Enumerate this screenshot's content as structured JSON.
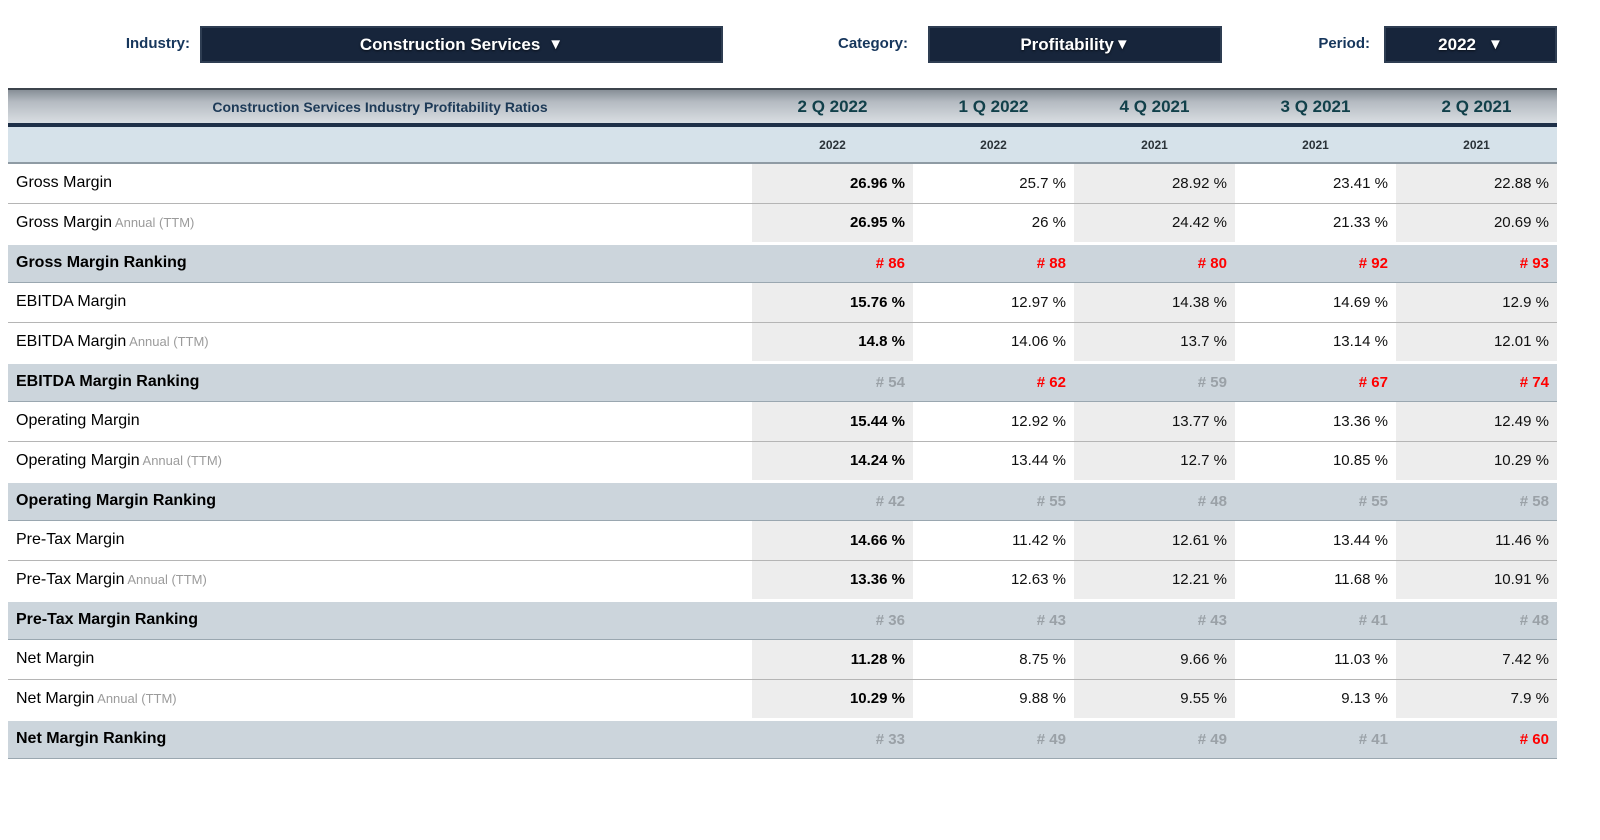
{
  "colors": {
    "dropdown_bg": "#17253b",
    "filter_label": "#16365c",
    "header_navy_band": "#1e3048",
    "subheader_bg": "#d6e2ea",
    "ranking_row_bg": "#ccd5dc",
    "shaded_column_bg": "#ededed",
    "ranking_red": "#ff0000",
    "ranking_gray": "#9aa1a7"
  },
  "filters": {
    "industry": {
      "label": "Industry:",
      "value": "Construction Services",
      "arrow": "▼"
    },
    "category": {
      "label": "Category:",
      "value": "Profitability",
      "arrow": "▼"
    },
    "period": {
      "label": "Period:",
      "value": "2022",
      "arrow": "▼"
    }
  },
  "table": {
    "title": "Construction Services Industry Profitability Ratios",
    "columns": [
      "2 Q 2022",
      "1 Q 2022",
      "4 Q 2021",
      "3 Q 2021",
      "2 Q 2021"
    ],
    "subcolumns": [
      "2022",
      "2022",
      "2021",
      "2021",
      "2021"
    ],
    "rows": [
      {
        "type": "data",
        "label": "Gross Margin",
        "sublabel": "",
        "values": [
          "26.96 %",
          "25.7 %",
          "28.92 %",
          "23.41 %",
          "22.88 %"
        ]
      },
      {
        "type": "data",
        "label": "Gross Margin",
        "sublabel": "Annual (TTM)",
        "values": [
          "26.95 %",
          "26 %",
          "24.42 %",
          "21.33 %",
          "20.69 %"
        ]
      },
      {
        "type": "ranking",
        "label": "Gross Margin Ranking",
        "values": [
          "# 86",
          "# 88",
          "# 80",
          "# 92",
          "# 93"
        ],
        "colors": [
          "red",
          "red",
          "red",
          "red",
          "red"
        ]
      },
      {
        "type": "data",
        "label": "EBITDA Margin",
        "sublabel": "",
        "values": [
          "15.76 %",
          "12.97 %",
          "14.38 %",
          "14.69 %",
          "12.9 %"
        ]
      },
      {
        "type": "data",
        "label": "EBITDA Margin",
        "sublabel": "Annual (TTM)",
        "values": [
          "14.8 %",
          "14.06 %",
          "13.7 %",
          "13.14 %",
          "12.01 %"
        ]
      },
      {
        "type": "ranking",
        "label": "EBITDA Margin Ranking",
        "values": [
          "# 54",
          "# 62",
          "# 59",
          "# 67",
          "# 74"
        ],
        "colors": [
          "gray",
          "red",
          "gray",
          "red",
          "red"
        ]
      },
      {
        "type": "data",
        "label": "Operating Margin",
        "sublabel": "",
        "values": [
          "15.44 %",
          "12.92 %",
          "13.77 %",
          "13.36 %",
          "12.49 %"
        ]
      },
      {
        "type": "data",
        "label": "Operating Margin",
        "sublabel": "Annual (TTM)",
        "values": [
          "14.24 %",
          "13.44 %",
          "12.7 %",
          "10.85 %",
          "10.29 %"
        ]
      },
      {
        "type": "ranking",
        "label": "Operating Margin Ranking",
        "values": [
          "# 42",
          "# 55",
          "# 48",
          "# 55",
          "# 58"
        ],
        "colors": [
          "gray",
          "gray",
          "gray",
          "gray",
          "gray"
        ]
      },
      {
        "type": "data",
        "label": "Pre-Tax Margin",
        "sublabel": "",
        "values": [
          "14.66 %",
          "11.42 %",
          "12.61 %",
          "13.44 %",
          "11.46 %"
        ]
      },
      {
        "type": "data",
        "label": "Pre-Tax Margin",
        "sublabel": "Annual (TTM)",
        "values": [
          "13.36 %",
          "12.63 %",
          "12.21 %",
          "11.68 %",
          "10.91 %"
        ]
      },
      {
        "type": "ranking",
        "label": "Pre-Tax Margin Ranking",
        "values": [
          "# 36",
          "# 43",
          "# 43",
          "# 41",
          "# 48"
        ],
        "colors": [
          "gray",
          "gray",
          "gray",
          "gray",
          "gray"
        ]
      },
      {
        "type": "data",
        "label": "Net Margin",
        "sublabel": "",
        "values": [
          "11.28 %",
          "8.75 %",
          "9.66 %",
          "11.03 %",
          "7.42 %"
        ]
      },
      {
        "type": "data",
        "label": "Net Margin",
        "sublabel": "Annual (TTM)",
        "values": [
          "10.29 %",
          "9.88 %",
          "9.55 %",
          "9.13 %",
          "7.9 %"
        ]
      },
      {
        "type": "ranking",
        "label": "Net Margin Ranking",
        "values": [
          "# 33",
          "# 49",
          "# 49",
          "# 41",
          "# 60"
        ],
        "colors": [
          "gray",
          "gray",
          "gray",
          "gray",
          "red"
        ]
      }
    ]
  }
}
